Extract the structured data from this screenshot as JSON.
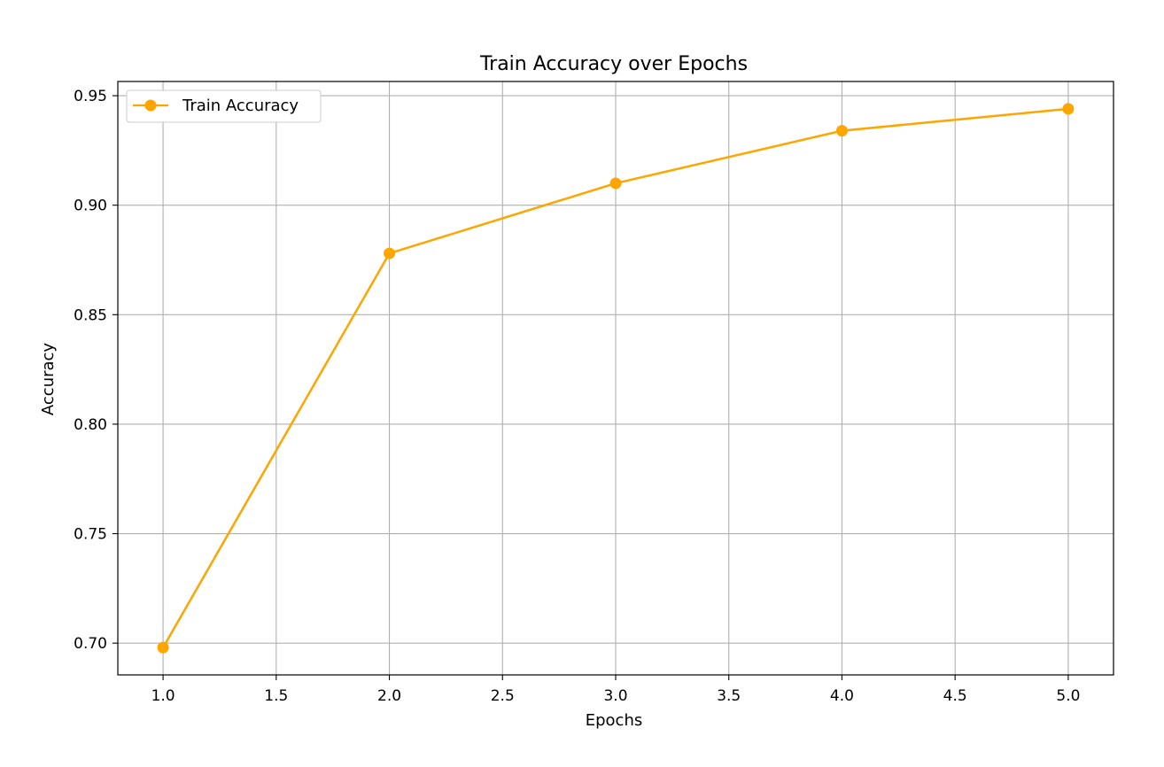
{
  "chart_data": {
    "type": "line",
    "title": "Train Accuracy over Epochs",
    "xlabel": "Epochs",
    "ylabel": "Accuracy",
    "xlim": [
      0.8,
      5.2
    ],
    "ylim": [
      0.6855,
      0.9565
    ],
    "xticks": [
      1.0,
      1.5,
      2.0,
      2.5,
      3.0,
      3.5,
      4.0,
      4.5,
      5.0
    ],
    "xtick_labels": [
      "1.0",
      "1.5",
      "2.0",
      "2.5",
      "3.0",
      "3.5",
      "4.0",
      "4.5",
      "5.0"
    ],
    "yticks": [
      0.7,
      0.75,
      0.8,
      0.85,
      0.9,
      0.95
    ],
    "ytick_labels": [
      "0.70",
      "0.75",
      "0.80",
      "0.85",
      "0.90",
      "0.95"
    ],
    "grid": true,
    "legend": {
      "placement": "upper-left"
    },
    "series": [
      {
        "name": "Train Accuracy",
        "color": "#ffa500",
        "marker": "circle",
        "x": [
          1,
          2,
          3,
          4,
          5
        ],
        "y": [
          0.698,
          0.878,
          0.91,
          0.934,
          0.944
        ]
      }
    ]
  }
}
